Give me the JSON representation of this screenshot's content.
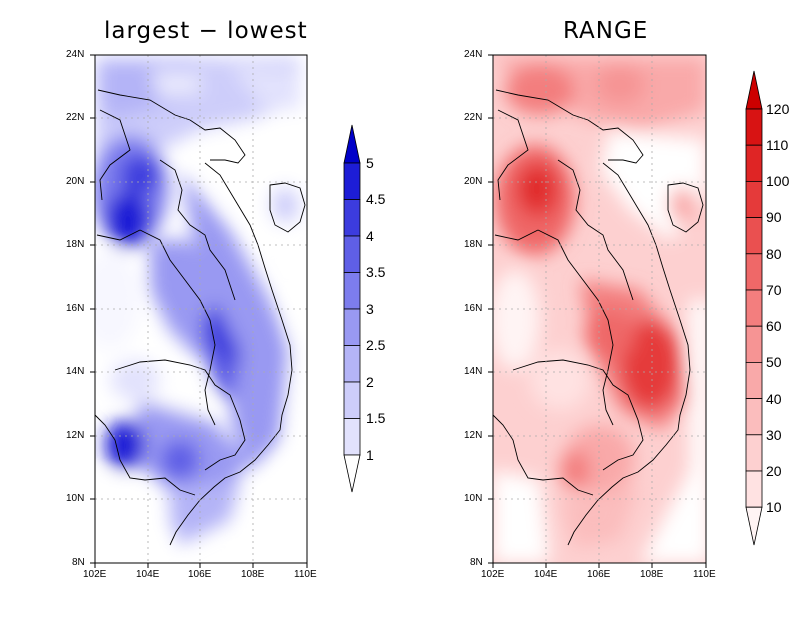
{
  "panels": [
    {
      "title": "largest − lowest",
      "x_ticks": [
        "102E",
        "104E",
        "106E",
        "108E",
        "110E"
      ],
      "y_ticks": [
        "24N",
        "22N",
        "20N",
        "18N",
        "16N",
        "14N",
        "12N",
        "10N",
        "8N"
      ],
      "colorbar_labels": [
        "5",
        "4.5",
        "4",
        "3.5",
        "3",
        "2.5",
        "2",
        "1.5",
        "1"
      ],
      "colorbar_colors": [
        "#f7f7ff",
        "#e2e2fd",
        "#cdcdfa",
        "#b4b4f7",
        "#9999f2",
        "#7d7ded",
        "#5f5fe6",
        "#3c3cde",
        "#1d1dd6",
        "#0000c8"
      ]
    },
    {
      "title": "RANGE",
      "x_ticks": [
        "102E",
        "104E",
        "106E",
        "108E",
        "110E"
      ],
      "y_ticks": [
        "24N",
        "22N",
        "20N",
        "18N",
        "16N",
        "14N",
        "12N",
        "10N",
        "8N"
      ],
      "colorbar_labels": [
        "120",
        "110",
        "100",
        "90",
        "80",
        "70",
        "60",
        "50",
        "40",
        "30",
        "20",
        "10"
      ],
      "colorbar_colors": [
        "#fff4f4",
        "#ffe2e2",
        "#fdd0d0",
        "#fbbdbd",
        "#f9a9a9",
        "#f69494",
        "#f37e7e",
        "#ef6868",
        "#ea5050",
        "#e53a3a",
        "#df2525",
        "#d81313",
        "#cc0000"
      ]
    }
  ]
}
